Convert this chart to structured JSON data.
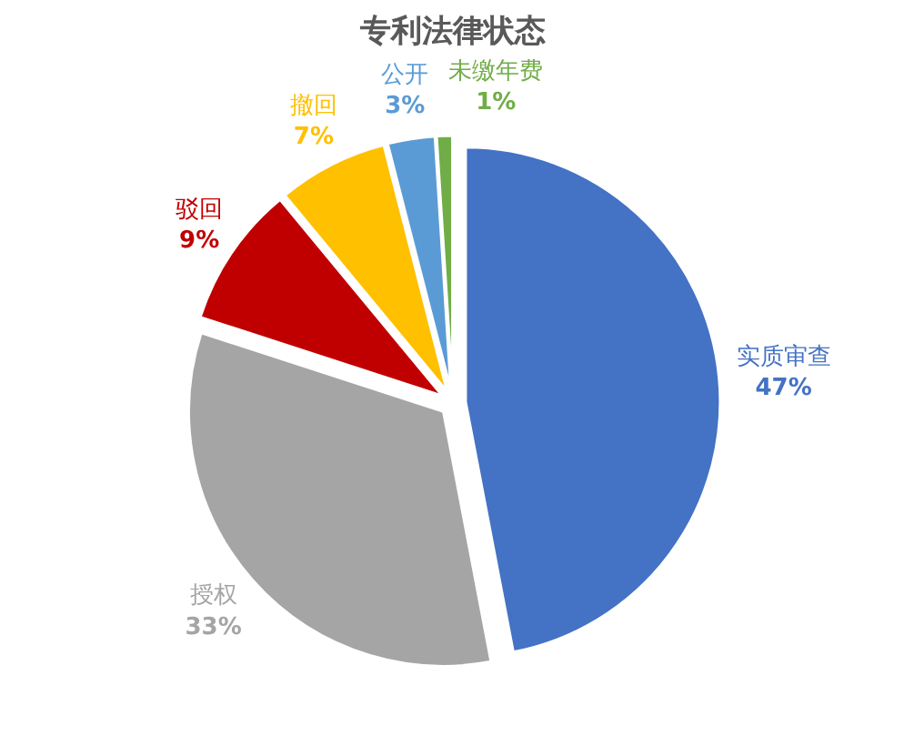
{
  "chart_data": {
    "type": "pie",
    "title": "专利法律状态",
    "categories": [
      "实质审查",
      "授权",
      "驳回",
      "撤回",
      "公开",
      "未缴年费"
    ],
    "values": [
      47,
      33,
      9,
      7,
      3,
      1
    ],
    "value_labels": [
      "47%",
      "33%",
      "9%",
      "7%",
      "3%",
      "1%"
    ],
    "colors": [
      "#4472c4",
      "#a5a5a5",
      "#c00000",
      "#ffc000",
      "#5b9bd5",
      "#70ad47"
    ]
  }
}
